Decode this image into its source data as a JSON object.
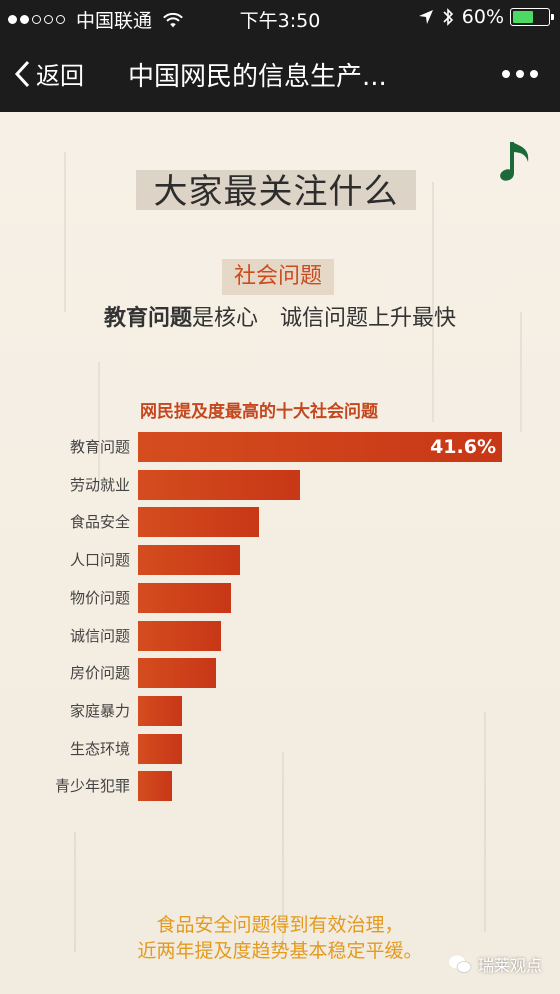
{
  "status_bar": {
    "carrier": "中国联通",
    "time": "下午3:50",
    "battery": "60%",
    "battery_level": 0.6
  },
  "nav": {
    "back_label": "返回",
    "title": "中国网民的信息生产..."
  },
  "article": {
    "heading": "大家最关注什么",
    "section_tag": "社会问题",
    "subheading_bold": "教育问题",
    "subheading_rest": "是核心　诚信问题上升最快",
    "footer_line1": "食品安全问题得到有效治理，",
    "footer_line2": "近两年提及度趋势基本稳定平缓。",
    "watermark": "瑞莱观点"
  },
  "chart_data": {
    "type": "bar",
    "orientation": "horizontal",
    "title": "网民提及度最高的十大社会问题",
    "categories": [
      "教育问题",
      "劳动就业",
      "食品安全",
      "人口问题",
      "物价问题",
      "诚信问题",
      "房价问题",
      "家庭暴力",
      "生态环境",
      "青少年犯罪"
    ],
    "values": [
      41.6,
      18.5,
      13.8,
      11.6,
      10.6,
      9.5,
      8.9,
      5.0,
      5.0,
      3.9
    ],
    "value_labels": [
      "41.6%",
      "",
      "",
      "",
      "",
      "",
      "",
      "",
      "",
      ""
    ],
    "xlim": [
      0,
      41.6
    ],
    "bar_color": "#cc4119"
  }
}
